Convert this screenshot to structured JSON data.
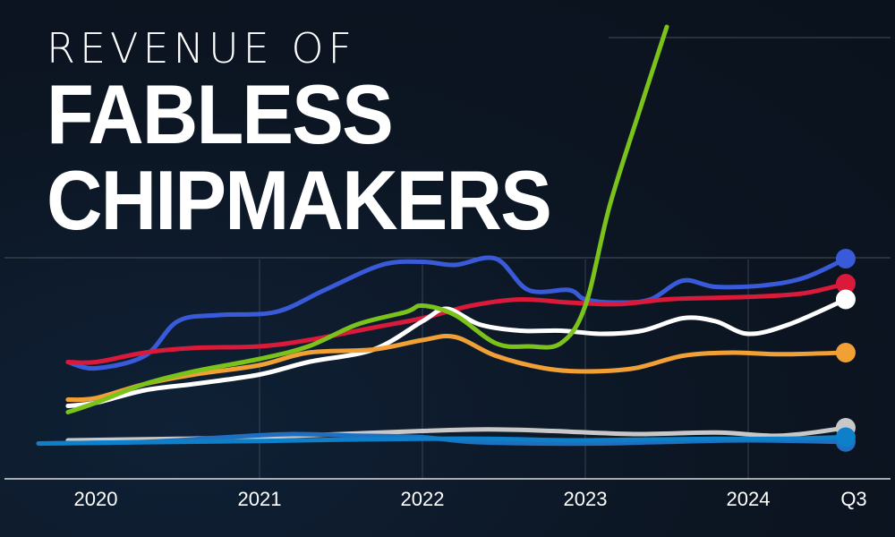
{
  "title": {
    "line1": "REVENUE OF",
    "line2": "FABLESS",
    "line3": "CHIPMAKERS"
  },
  "chart_data": {
    "type": "line",
    "x_ticks": [
      "2020",
      "2021",
      "2022",
      "2023",
      "2024",
      "Q3"
    ],
    "grid": "faint horizontal and vertical lines",
    "legend": "none",
    "series": [
      {
        "color": "#3a5bd9",
        "marker": true,
        "values": [
          [
            2019.83,
            3.3
          ],
          [
            2020.0,
            3.1
          ],
          [
            2020.3,
            3.5
          ],
          [
            2020.5,
            4.6
          ],
          [
            2020.75,
            4.8
          ],
          [
            2021.1,
            4.9
          ],
          [
            2021.4,
            5.6
          ],
          [
            2021.75,
            6.4
          ],
          [
            2022.0,
            6.5
          ],
          [
            2022.2,
            6.4
          ],
          [
            2022.45,
            6.6
          ],
          [
            2022.65,
            5.6
          ],
          [
            2022.9,
            5.6
          ],
          [
            2023.0,
            5.3
          ],
          [
            2023.2,
            5.2
          ],
          [
            2023.4,
            5.3
          ],
          [
            2023.6,
            5.9
          ],
          [
            2023.8,
            5.7
          ],
          [
            2024.1,
            5.75
          ],
          [
            2024.35,
            6.0
          ],
          [
            2024.6,
            6.6
          ]
        ]
      },
      {
        "color": "#d91a3a",
        "marker": true,
        "values": [
          [
            2019.83,
            3.3
          ],
          [
            2020.0,
            3.3
          ],
          [
            2020.3,
            3.6
          ],
          [
            2020.6,
            3.75
          ],
          [
            2021.0,
            3.8
          ],
          [
            2021.3,
            4.0
          ],
          [
            2021.7,
            4.4
          ],
          [
            2022.0,
            4.7
          ],
          [
            2022.3,
            5.1
          ],
          [
            2022.6,
            5.3
          ],
          [
            2022.9,
            5.2
          ],
          [
            2023.2,
            5.15
          ],
          [
            2023.5,
            5.3
          ],
          [
            2023.8,
            5.35
          ],
          [
            2024.1,
            5.4
          ],
          [
            2024.35,
            5.5
          ],
          [
            2024.6,
            5.8
          ]
        ]
      },
      {
        "color": "#ffffff",
        "marker": true,
        "values": [
          [
            2019.83,
            1.9
          ],
          [
            2020.0,
            2.0
          ],
          [
            2020.3,
            2.4
          ],
          [
            2020.6,
            2.6
          ],
          [
            2021.0,
            2.9
          ],
          [
            2021.3,
            3.3
          ],
          [
            2021.7,
            3.7
          ],
          [
            2022.0,
            4.6
          ],
          [
            2022.15,
            5.0
          ],
          [
            2022.35,
            4.5
          ],
          [
            2022.6,
            4.3
          ],
          [
            2022.85,
            4.3
          ],
          [
            2023.1,
            4.2
          ],
          [
            2023.35,
            4.3
          ],
          [
            2023.6,
            4.7
          ],
          [
            2023.8,
            4.6
          ],
          [
            2024.0,
            4.2
          ],
          [
            2024.25,
            4.5
          ],
          [
            2024.6,
            5.3
          ]
        ]
      },
      {
        "color": "#f0a035",
        "marker": true,
        "values": [
          [
            2019.83,
            2.1
          ],
          [
            2020.0,
            2.15
          ],
          [
            2020.3,
            2.6
          ],
          [
            2020.6,
            2.9
          ],
          [
            2021.0,
            3.2
          ],
          [
            2021.3,
            3.6
          ],
          [
            2021.7,
            3.7
          ],
          [
            2022.0,
            4.0
          ],
          [
            2022.2,
            4.1
          ],
          [
            2022.45,
            3.5
          ],
          [
            2022.75,
            3.1
          ],
          [
            2023.0,
            3.0
          ],
          [
            2023.3,
            3.1
          ],
          [
            2023.6,
            3.5
          ],
          [
            2023.9,
            3.6
          ],
          [
            2024.2,
            3.55
          ],
          [
            2024.6,
            3.6
          ]
        ]
      },
      {
        "color": "#c8c8c8",
        "marker": true,
        "values": [
          [
            2019.83,
            0.8
          ],
          [
            2020.5,
            0.85
          ],
          [
            2021.0,
            0.9
          ],
          [
            2021.5,
            1.0
          ],
          [
            2022.0,
            1.1
          ],
          [
            2022.4,
            1.15
          ],
          [
            2022.8,
            1.1
          ],
          [
            2023.3,
            1.0
          ],
          [
            2023.8,
            1.05
          ],
          [
            2024.2,
            0.95
          ],
          [
            2024.6,
            1.2
          ]
        ]
      },
      {
        "color": "#1f6fc0",
        "marker": true,
        "values": [
          [
            2019.65,
            0.7
          ],
          [
            2020.3,
            0.75
          ],
          [
            2020.8,
            0.9
          ],
          [
            2021.2,
            1.0
          ],
          [
            2021.6,
            0.95
          ],
          [
            2022.0,
            0.9
          ],
          [
            2022.3,
            0.75
          ],
          [
            2022.7,
            0.7
          ],
          [
            2023.1,
            0.7
          ],
          [
            2023.5,
            0.75
          ],
          [
            2024.0,
            0.8
          ],
          [
            2024.6,
            0.75
          ]
        ]
      },
      {
        "color": "#0e7fc9",
        "marker": true,
        "values": [
          [
            2019.65,
            0.7
          ],
          [
            2020.5,
            0.75
          ],
          [
            2021.0,
            0.78
          ],
          [
            2021.5,
            0.82
          ],
          [
            2022.0,
            0.85
          ],
          [
            2022.4,
            0.85
          ],
          [
            2022.9,
            0.8
          ],
          [
            2023.3,
            0.82
          ],
          [
            2023.8,
            0.85
          ],
          [
            2024.2,
            0.85
          ],
          [
            2024.6,
            0.9
          ]
        ]
      },
      {
        "color": "#7bc21a",
        "marker": false,
        "values": [
          [
            2019.83,
            1.7
          ],
          [
            2020.0,
            2.0
          ],
          [
            2020.3,
            2.6
          ],
          [
            2020.6,
            3.0
          ],
          [
            2021.0,
            3.4
          ],
          [
            2021.3,
            3.8
          ],
          [
            2021.6,
            4.5
          ],
          [
            2021.9,
            4.9
          ],
          [
            2022.0,
            5.1
          ],
          [
            2022.2,
            4.8
          ],
          [
            2022.45,
            3.9
          ],
          [
            2022.65,
            3.8
          ],
          [
            2022.85,
            3.9
          ],
          [
            2023.0,
            5.1
          ],
          [
            2023.15,
            8.3
          ],
          [
            2023.35,
            11.6
          ],
          [
            2023.5,
            14.0
          ]
        ]
      }
    ]
  }
}
